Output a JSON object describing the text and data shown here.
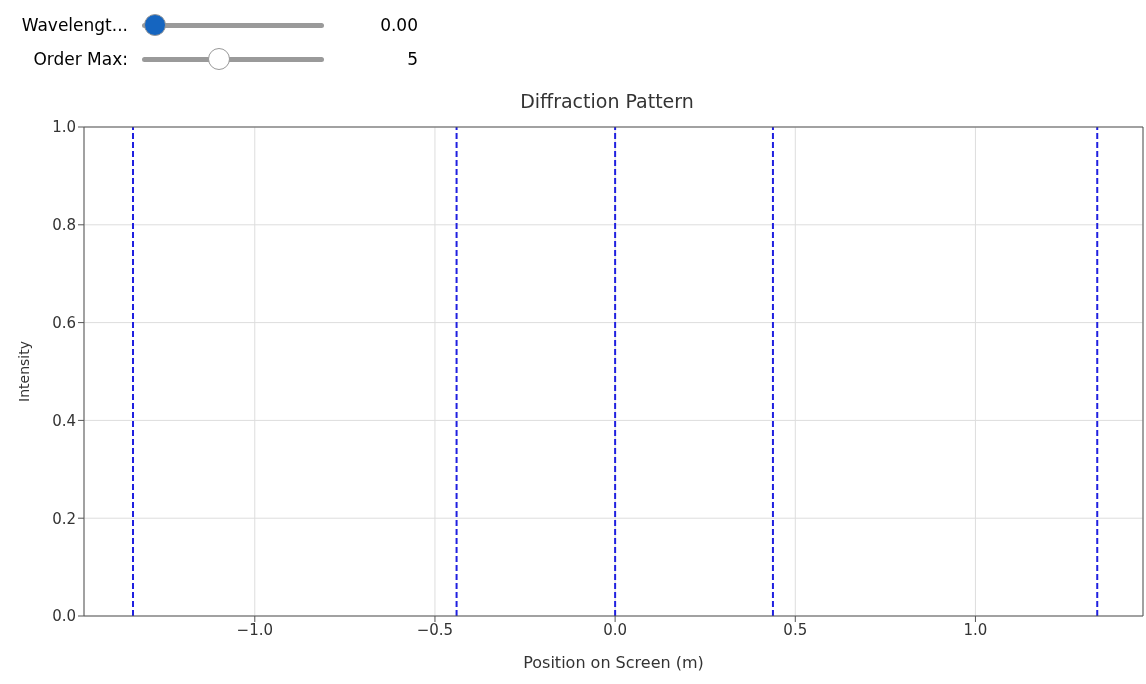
{
  "chart_data": {
    "type": "line",
    "title": "Diffraction Pattern",
    "xlabel": "Position on Screen (m)",
    "ylabel": "Intensity",
    "annotations": [
      "Wavelengt...",
      "0.00",
      "Order Max:",
      "5"
    ],
    "xlim": [
      -1.474,
      1.465
    ],
    "ylim": [
      0,
      1
    ],
    "xticks": [
      {
        "value": -1,
        "label": "−1.0"
      },
      {
        "value": -0.5,
        "label": "−0.5"
      },
      {
        "value": 0,
        "label": "0.0"
      },
      {
        "value": 0.5,
        "label": "0.5"
      },
      {
        "value": 1,
        "label": "1.0"
      }
    ],
    "yticks": [
      {
        "value": 0,
        "label": "0.0"
      },
      {
        "value": 0.2,
        "label": "0.2"
      },
      {
        "value": 0.4,
        "label": "0.4"
      },
      {
        "value": 0.6,
        "label": "0.6"
      },
      {
        "value": 0.8,
        "label": "0.8"
      },
      {
        "value": 1,
        "label": "1.0"
      }
    ],
    "grid": true,
    "ref_lines": [
      {
        "axis": "x",
        "value": -1.338,
        "color": "#2020e0",
        "line_style": "dashed"
      },
      {
        "axis": "x",
        "value": -0.44,
        "color": "#2020e0",
        "line_style": "dashed"
      },
      {
        "axis": "x",
        "value": 0,
        "color": "#2020e0",
        "line_style": "dashed"
      },
      {
        "axis": "x",
        "value": 0.438,
        "color": "#2020e0",
        "line_style": "dashed"
      },
      {
        "axis": "x",
        "value": 1.338,
        "color": "#2020e0",
        "line_style": "dashed"
      }
    ]
  }
}
